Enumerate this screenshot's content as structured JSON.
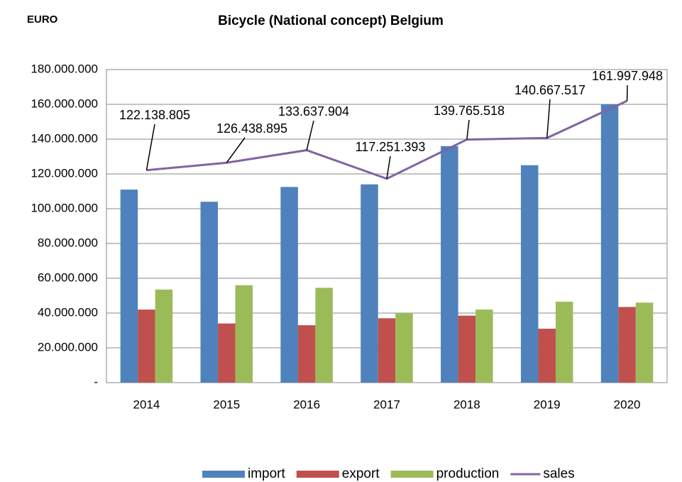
{
  "chart_data": {
    "type": "bar",
    "title": "Bicycle (National concept) Belgium",
    "ylabel": "EURO",
    "categories": [
      "2014",
      "2015",
      "2016",
      "2017",
      "2018",
      "2019",
      "2020"
    ],
    "series": [
      {
        "name": "import",
        "color": "#4f81bd",
        "values": [
          111000000,
          104000000,
          112500000,
          114000000,
          136000000,
          125000000,
          160000000
        ]
      },
      {
        "name": "export",
        "color": "#c0504d",
        "values": [
          42000000,
          34000000,
          33000000,
          37000000,
          38500000,
          31000000,
          43500000
        ]
      },
      {
        "name": "production",
        "color": "#9bbb59",
        "values": [
          53500000,
          56000000,
          54500000,
          40000000,
          42000000,
          46500000,
          46000000
        ]
      },
      {
        "name": "sales",
        "type": "line",
        "color": "#8064a2",
        "values": [
          122138805,
          126438895,
          133637904,
          117251393,
          139765518,
          140667517,
          161997948
        ],
        "value_labels": [
          "122.138.805",
          "126.438.895",
          "133.637.904",
          "117.251.393",
          "139.765.518",
          "140.667.517",
          "161.997.948"
        ]
      }
    ],
    "ylim": [
      0,
      180000000
    ],
    "yticks": [
      {
        "value": 0,
        "label": "-"
      },
      {
        "value": 20000000,
        "label": "20.000.000"
      },
      {
        "value": 40000000,
        "label": "40.000.000"
      },
      {
        "value": 60000000,
        "label": "60.000.000"
      },
      {
        "value": 80000000,
        "label": "80.000.000"
      },
      {
        "value": 100000000,
        "label": "100.000.000"
      },
      {
        "value": 120000000,
        "label": "120.000.000"
      },
      {
        "value": 140000000,
        "label": "140.000.000"
      },
      {
        "value": 160000000,
        "label": "160.000.000"
      },
      {
        "value": 180000000,
        "label": "180.000.000"
      }
    ],
    "grid": true,
    "legend": "bottom"
  }
}
